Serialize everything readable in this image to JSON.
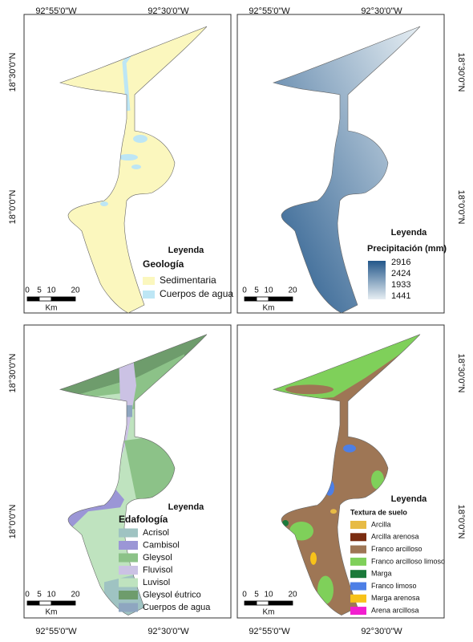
{
  "coordinates": {
    "lon": [
      "92°55'0\"W",
      "92°30'0\"W"
    ],
    "lat": [
      "18°30'0\"N",
      "18°0'0\"N"
    ]
  },
  "scale_bar": {
    "ticks": [
      0,
      5,
      10,
      20
    ],
    "unit": "Km"
  },
  "panels": [
    {
      "legend_title": "Leyenda",
      "legend_subtitle": "Geología",
      "items": [
        {
          "label": "Sedimentaria",
          "color": "#fbf7be"
        },
        {
          "label": "Cuerpos de agua",
          "color": "#bde6f5"
        }
      ]
    },
    {
      "legend_title": "Leyenda",
      "legend_subtitle": "Precipitación (mm)",
      "gradient": {
        "labels": [
          2916,
          2424,
          1933,
          1441
        ],
        "colors": [
          "#23578a",
          "#e6eef3"
        ]
      }
    },
    {
      "legend_title": "Leyenda",
      "legend_subtitle": "Edafología",
      "items": [
        {
          "label": "Acrisol",
          "color": "#9fc3c2"
        },
        {
          "label": "Cambisol",
          "color": "#9b96d6"
        },
        {
          "label": "Gleysol",
          "color": "#8cc288"
        },
        {
          "label": "Fluvisol",
          "color": "#cbc2e4"
        },
        {
          "label": "Luvisol",
          "color": "#bfe3bf"
        },
        {
          "label": "Gleysol éutrico",
          "color": "#6e9c6c"
        },
        {
          "label": "Cuerpos de agua",
          "color": "#8ea6c0"
        }
      ]
    },
    {
      "legend_title": "Leyenda",
      "legend_subtitle": "Textura de suelo",
      "items": [
        {
          "label": "Arcilla",
          "color": "#e7bb45"
        },
        {
          "label": "Arcilla arenosa",
          "color": "#7a2c10"
        },
        {
          "label": "Franco arcilloso",
          "color": "#9e7655"
        },
        {
          "label": "Franco arcilloso limoso",
          "color": "#7fd05a"
        },
        {
          "label": "Marga",
          "color": "#1b7a3a"
        },
        {
          "label": "Franco limoso",
          "color": "#4d7fe6"
        },
        {
          "label": "Marga arenosa",
          "color": "#f7c21a"
        },
        {
          "label": "Arena arcillosa",
          "color": "#f21ecf"
        }
      ]
    }
  ]
}
